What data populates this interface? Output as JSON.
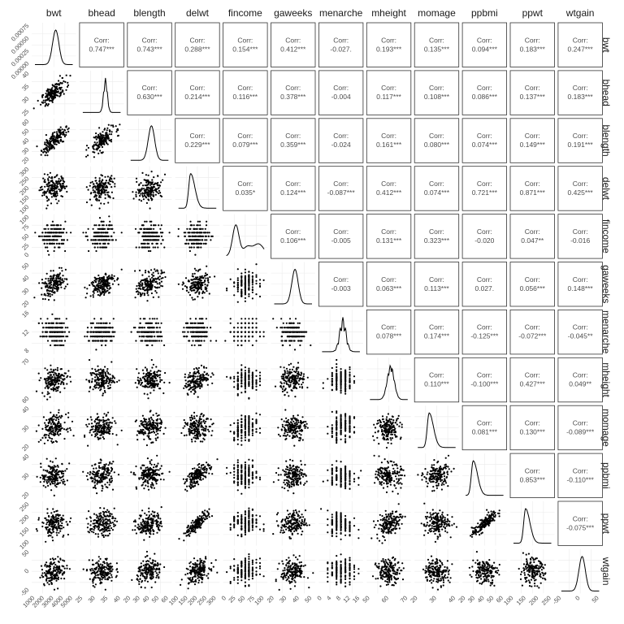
{
  "chart_data": {
    "type": "scatter",
    "title": "",
    "variables": [
      "bwt",
      "bhead",
      "blength",
      "delwt",
      "fincome",
      "gaweeks",
      "menarche",
      "mheight",
      "momage",
      "ppbmi",
      "ppwt",
      "wtgain"
    ],
    "correlations": [
      {
        "row": "bwt",
        "col": "bhead",
        "label": "0.747***"
      },
      {
        "row": "bwt",
        "col": "blength",
        "label": "0.743***"
      },
      {
        "row": "bwt",
        "col": "delwt",
        "label": "0.288***"
      },
      {
        "row": "bwt",
        "col": "fincome",
        "label": "0.154***"
      },
      {
        "row": "bwt",
        "col": "gaweeks",
        "label": "0.412***"
      },
      {
        "row": "bwt",
        "col": "menarche",
        "label": "-0.027."
      },
      {
        "row": "bwt",
        "col": "mheight",
        "label": "0.193***"
      },
      {
        "row": "bwt",
        "col": "momage",
        "label": "0.135***"
      },
      {
        "row": "bwt",
        "col": "ppbmi",
        "label": "0.094***"
      },
      {
        "row": "bwt",
        "col": "ppwt",
        "label": "0.183***"
      },
      {
        "row": "bwt",
        "col": "wtgain",
        "label": "0.247***"
      },
      {
        "row": "bhead",
        "col": "blength",
        "label": "0.630***"
      },
      {
        "row": "bhead",
        "col": "delwt",
        "label": "0.214***"
      },
      {
        "row": "bhead",
        "col": "fincome",
        "label": "0.116***"
      },
      {
        "row": "bhead",
        "col": "gaweeks",
        "label": "0.378***"
      },
      {
        "row": "bhead",
        "col": "menarche",
        "label": "-0.004"
      },
      {
        "row": "bhead",
        "col": "mheight",
        "label": "0.117***"
      },
      {
        "row": "bhead",
        "col": "momage",
        "label": "0.108***"
      },
      {
        "row": "bhead",
        "col": "ppbmi",
        "label": "0.086***"
      },
      {
        "row": "bhead",
        "col": "ppwt",
        "label": "0.137***"
      },
      {
        "row": "bhead",
        "col": "wtgain",
        "label": "0.183***"
      },
      {
        "row": "blength",
        "col": "delwt",
        "label": "0.229***"
      },
      {
        "row": "blength",
        "col": "fincome",
        "label": "0.079***"
      },
      {
        "row": "blength",
        "col": "gaweeks",
        "label": "0.359***"
      },
      {
        "row": "blength",
        "col": "menarche",
        "label": "-0.024"
      },
      {
        "row": "blength",
        "col": "mheight",
        "label": "0.161***"
      },
      {
        "row": "blength",
        "col": "momage",
        "label": "0.080***"
      },
      {
        "row": "blength",
        "col": "ppbmi",
        "label": "0.074***"
      },
      {
        "row": "blength",
        "col": "ppwt",
        "label": "0.149***"
      },
      {
        "row": "blength",
        "col": "wtgain",
        "label": "0.191***"
      },
      {
        "row": "delwt",
        "col": "fincome",
        "label": "0.035*"
      },
      {
        "row": "delwt",
        "col": "gaweeks",
        "label": "0.124***"
      },
      {
        "row": "delwt",
        "col": "menarche",
        "label": "-0.087***"
      },
      {
        "row": "delwt",
        "col": "mheight",
        "label": "0.412***"
      },
      {
        "row": "delwt",
        "col": "momage",
        "label": "0.074***"
      },
      {
        "row": "delwt",
        "col": "ppbmi",
        "label": "0.721***"
      },
      {
        "row": "delwt",
        "col": "ppwt",
        "label": "0.871***"
      },
      {
        "row": "delwt",
        "col": "wtgain",
        "label": "0.425***"
      },
      {
        "row": "fincome",
        "col": "gaweeks",
        "label": "0.106***"
      },
      {
        "row": "fincome",
        "col": "menarche",
        "label": "-0.005"
      },
      {
        "row": "fincome",
        "col": "mheight",
        "label": "0.131***"
      },
      {
        "row": "fincome",
        "col": "momage",
        "label": "0.323***"
      },
      {
        "row": "fincome",
        "col": "ppbmi",
        "label": "-0.020"
      },
      {
        "row": "fincome",
        "col": "ppwt",
        "label": "0.047**"
      },
      {
        "row": "fincome",
        "col": "wtgain",
        "label": "-0.016"
      },
      {
        "row": "gaweeks",
        "col": "menarche",
        "label": "-0.003"
      },
      {
        "row": "gaweeks",
        "col": "mheight",
        "label": "0.063***"
      },
      {
        "row": "gaweeks",
        "col": "momage",
        "label": "0.113***"
      },
      {
        "row": "gaweeks",
        "col": "ppbmi",
        "label": "0.027."
      },
      {
        "row": "gaweeks",
        "col": "ppwt",
        "label": "0.056***"
      },
      {
        "row": "gaweeks",
        "col": "wtgain",
        "label": "0.148***"
      },
      {
        "row": "menarche",
        "col": "mheight",
        "label": "0.078***"
      },
      {
        "row": "menarche",
        "col": "momage",
        "label": "0.174***"
      },
      {
        "row": "menarche",
        "col": "ppbmi",
        "label": "-0.125***"
      },
      {
        "row": "menarche",
        "col": "ppwt",
        "label": "-0.072***"
      },
      {
        "row": "menarche",
        "col": "wtgain",
        "label": "-0.045**"
      },
      {
        "row": "mheight",
        "col": "momage",
        "label": "0.110***"
      },
      {
        "row": "mheight",
        "col": "ppbmi",
        "label": "-0.100***"
      },
      {
        "row": "mheight",
        "col": "ppwt",
        "label": "0.427***"
      },
      {
        "row": "mheight",
        "col": "wtgain",
        "label": "0.049**"
      },
      {
        "row": "momage",
        "col": "ppbmi",
        "label": "0.081***"
      },
      {
        "row": "momage",
        "col": "ppwt",
        "label": "0.130***"
      },
      {
        "row": "momage",
        "col": "wtgain",
        "label": "-0.089***"
      },
      {
        "row": "ppbmi",
        "col": "ppwt",
        "label": "0.853***"
      },
      {
        "row": "ppbmi",
        "col": "wtgain",
        "label": "-0.110***"
      },
      {
        "row": "ppwt",
        "col": "wtgain",
        "label": "-0.075***"
      }
    ],
    "corr_prefix": "Corr:",
    "x_ticks": {
      "bwt": [
        "1000",
        "2000",
        "3000",
        "4000",
        "5000"
      ],
      "bhead": [
        "25",
        "30",
        "35",
        "40"
      ],
      "blength": [
        "20",
        "30",
        "40",
        "50",
        "60"
      ],
      "delwt": [
        "100",
        "150",
        "200",
        "250",
        "300"
      ],
      "fincome": [
        "0",
        "25",
        "50",
        "75",
        "100"
      ],
      "gaweeks": [
        "20",
        "30",
        "40",
        "50"
      ],
      "menarche": [
        "0",
        "4",
        "8",
        "12",
        "16"
      ],
      "mheight": [
        "50",
        "60",
        "70"
      ],
      "momage": [
        "20",
        "30",
        "40"
      ],
      "ppbmi": [
        "20",
        "30",
        "40",
        "50",
        "60"
      ],
      "ppwt": [
        "100",
        "150",
        "200",
        "250"
      ],
      "wtgain": [
        "-50",
        "0",
        "50"
      ]
    },
    "y_ticks": {
      "bwt": [
        "0.00000",
        "0.00025",
        "0.00050",
        "0.00075"
      ],
      "bhead": [
        "25",
        "30",
        "35",
        "40"
      ],
      "blength": [
        "20",
        "30",
        "40",
        "50",
        "60"
      ],
      "delwt": [
        "100",
        "150",
        "200",
        "250",
        "300"
      ],
      "fincome": [
        "0",
        "25",
        "50",
        "75",
        "100"
      ],
      "gaweeks": [
        "20",
        "30",
        "40",
        "50"
      ],
      "menarche": [
        "8",
        "12",
        "16"
      ],
      "mheight": [
        "60",
        "70"
      ],
      "momage": [
        "20",
        "30",
        "40"
      ],
      "ppbmi": [
        "20",
        "30",
        "40"
      ],
      "ppwt": [
        "100",
        "150",
        "200",
        "250"
      ],
      "wtgain": [
        "-50",
        "0",
        "50"
      ]
    },
    "panel_types": {
      "lower": "scatter",
      "diagonal": "density",
      "upper": "correlation"
    },
    "grid": true,
    "colors": {
      "points": "#000000",
      "panel_background": "#ffffff",
      "grid": "#ebebeb",
      "border": "#333333",
      "text": "#4d4d4d"
    }
  }
}
